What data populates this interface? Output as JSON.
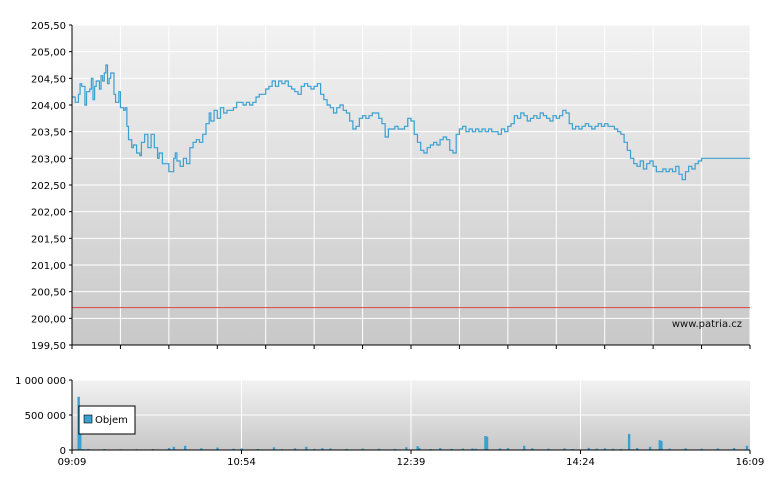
{
  "watermark": "www.patria.cz",
  "colors": {
    "price_line": "#3aa0d0",
    "reference_line": "#e04040",
    "volume_bar": "#3aa0d0",
    "grid": "#ffffff",
    "plot_top": "#f2f2f2",
    "plot_bottom": "#c8c8c8",
    "axis": "#000000"
  },
  "chart_data": [
    {
      "type": "line",
      "ylim": [
        199.5,
        205.5
      ],
      "yticks": [
        "199,50",
        "200,00",
        "200,50",
        "201,00",
        "201,50",
        "202,00",
        "202,50",
        "203,00",
        "203,50",
        "204,00",
        "204,50",
        "205,00",
        "205,50"
      ],
      "ytick_values": [
        199.5,
        200,
        200.5,
        201,
        201.5,
        202,
        202.5,
        203,
        203.5,
        204,
        204.5,
        205,
        205.5
      ],
      "reference_value": 200.2,
      "xlim": [
        0,
        420
      ],
      "series": [
        {
          "points": [
            [
              0,
              204.15
            ],
            [
              2,
              204.05
            ],
            [
              4,
              204.2
            ],
            [
              5,
              204.4
            ],
            [
              6,
              204.35
            ],
            [
              8,
              204.0
            ],
            [
              9,
              204.25
            ],
            [
              11,
              204.3
            ],
            [
              12,
              204.5
            ],
            [
              13,
              204.1
            ],
            [
              14,
              204.35
            ],
            [
              15,
              204.45
            ],
            [
              17,
              204.3
            ],
            [
              18,
              204.55
            ],
            [
              19,
              204.45
            ],
            [
              20,
              204.6
            ],
            [
              21,
              204.75
            ],
            [
              22,
              204.4
            ],
            [
              23,
              204.5
            ],
            [
              24,
              204.6
            ],
            [
              26,
              204.2
            ],
            [
              27,
              204.05
            ],
            [
              29,
              204.25
            ],
            [
              30,
              203.95
            ],
            [
              32,
              203.9
            ],
            [
              33,
              203.95
            ],
            [
              34,
              203.6
            ],
            [
              35,
              203.35
            ],
            [
              37,
              203.2
            ],
            [
              38,
              203.25
            ],
            [
              40,
              203.1
            ],
            [
              42,
              203.05
            ],
            [
              43,
              203.3
            ],
            [
              45,
              203.45
            ],
            [
              47,
              203.2
            ],
            [
              49,
              203.45
            ],
            [
              51,
              203.2
            ],
            [
              53,
              203.0
            ],
            [
              54,
              203.1
            ],
            [
              56,
              202.9
            ],
            [
              58,
              202.9
            ],
            [
              60,
              202.75
            ],
            [
              62,
              202.75
            ],
            [
              63,
              203.0
            ],
            [
              64,
              203.1
            ],
            [
              65,
              202.95
            ],
            [
              67,
              202.85
            ],
            [
              69,
              203.0
            ],
            [
              71,
              202.9
            ],
            [
              73,
              203.2
            ],
            [
              75,
              203.3
            ],
            [
              77,
              203.35
            ],
            [
              79,
              203.3
            ],
            [
              81,
              203.45
            ],
            [
              83,
              203.65
            ],
            [
              85,
              203.85
            ],
            [
              86,
              203.7
            ],
            [
              88,
              203.9
            ],
            [
              90,
              203.75
            ],
            [
              92,
              203.95
            ],
            [
              94,
              203.85
            ],
            [
              96,
              203.9
            ],
            [
              98,
              203.9
            ],
            [
              100,
              203.95
            ],
            [
              102,
              204.05
            ],
            [
              104,
              204.05
            ],
            [
              106,
              204.0
            ],
            [
              108,
              204.05
            ],
            [
              110,
              204.0
            ],
            [
              112,
              204.05
            ],
            [
              114,
              204.15
            ],
            [
              116,
              204.2
            ],
            [
              118,
              204.2
            ],
            [
              120,
              204.3
            ],
            [
              122,
              204.35
            ],
            [
              124,
              204.45
            ],
            [
              126,
              204.35
            ],
            [
              128,
              204.45
            ],
            [
              130,
              204.4
            ],
            [
              132,
              204.45
            ],
            [
              134,
              204.35
            ],
            [
              136,
              204.3
            ],
            [
              138,
              204.25
            ],
            [
              140,
              204.2
            ],
            [
              142,
              204.35
            ],
            [
              144,
              204.4
            ],
            [
              146,
              204.35
            ],
            [
              148,
              204.3
            ],
            [
              150,
              204.35
            ],
            [
              152,
              204.4
            ],
            [
              154,
              204.2
            ],
            [
              156,
              204.1
            ],
            [
              158,
              204.0
            ],
            [
              160,
              203.95
            ],
            [
              162,
              203.85
            ],
            [
              164,
              203.95
            ],
            [
              166,
              204.0
            ],
            [
              168,
              203.9
            ],
            [
              170,
              203.85
            ],
            [
              172,
              203.7
            ],
            [
              174,
              203.55
            ],
            [
              176,
              203.6
            ],
            [
              178,
              203.75
            ],
            [
              180,
              203.8
            ],
            [
              182,
              203.75
            ],
            [
              184,
              203.8
            ],
            [
              186,
              203.85
            ],
            [
              188,
              203.85
            ],
            [
              190,
              203.75
            ],
            [
              192,
              203.65
            ],
            [
              194,
              203.4
            ],
            [
              196,
              203.55
            ],
            [
              198,
              203.55
            ],
            [
              200,
              203.6
            ],
            [
              202,
              203.55
            ],
            [
              204,
              203.55
            ],
            [
              206,
              203.6
            ],
            [
              208,
              203.75
            ],
            [
              210,
              203.7
            ],
            [
              212,
              203.45
            ],
            [
              214,
              203.3
            ],
            [
              216,
              203.15
            ],
            [
              218,
              203.1
            ],
            [
              220,
              203.2
            ],
            [
              222,
              203.25
            ],
            [
              224,
              203.3
            ],
            [
              226,
              203.25
            ],
            [
              228,
              203.35
            ],
            [
              230,
              203.4
            ],
            [
              232,
              203.35
            ],
            [
              234,
              203.15
            ],
            [
              236,
              203.1
            ],
            [
              238,
              203.45
            ],
            [
              240,
              203.55
            ],
            [
              242,
              203.6
            ],
            [
              244,
              203.5
            ],
            [
              246,
              203.55
            ],
            [
              248,
              203.5
            ],
            [
              250,
              203.55
            ],
            [
              252,
              203.5
            ],
            [
              254,
              203.55
            ],
            [
              256,
              203.5
            ],
            [
              258,
              203.55
            ],
            [
              260,
              203.5
            ],
            [
              262,
              203.5
            ],
            [
              264,
              203.45
            ],
            [
              266,
              203.55
            ],
            [
              268,
              203.5
            ],
            [
              270,
              203.6
            ],
            [
              272,
              203.65
            ],
            [
              274,
              203.8
            ],
            [
              276,
              203.75
            ],
            [
              278,
              203.85
            ],
            [
              280,
              203.8
            ],
            [
              282,
              203.7
            ],
            [
              284,
              203.75
            ],
            [
              286,
              203.8
            ],
            [
              288,
              203.75
            ],
            [
              290,
              203.85
            ],
            [
              292,
              203.8
            ],
            [
              294,
              203.75
            ],
            [
              296,
              203.7
            ],
            [
              298,
              203.8
            ],
            [
              300,
              203.75
            ],
            [
              302,
              203.8
            ],
            [
              304,
              203.9
            ],
            [
              306,
              203.85
            ],
            [
              308,
              203.65
            ],
            [
              310,
              203.55
            ],
            [
              312,
              203.6
            ],
            [
              314,
              203.55
            ],
            [
              316,
              203.6
            ],
            [
              318,
              203.65
            ],
            [
              320,
              203.6
            ],
            [
              322,
              203.55
            ],
            [
              324,
              203.6
            ],
            [
              326,
              203.65
            ],
            [
              328,
              203.6
            ],
            [
              330,
              203.65
            ],
            [
              332,
              203.6
            ],
            [
              334,
              203.6
            ],
            [
              336,
              203.55
            ],
            [
              338,
              203.5
            ],
            [
              340,
              203.45
            ],
            [
              342,
              203.3
            ],
            [
              344,
              203.15
            ],
            [
              346,
              203.0
            ],
            [
              348,
              202.9
            ],
            [
              350,
              202.85
            ],
            [
              352,
              202.95
            ],
            [
              354,
              202.8
            ],
            [
              356,
              202.9
            ],
            [
              358,
              202.95
            ],
            [
              360,
              202.85
            ],
            [
              362,
              202.75
            ],
            [
              364,
              202.75
            ],
            [
              366,
              202.8
            ],
            [
              368,
              202.75
            ],
            [
              370,
              202.8
            ],
            [
              372,
              202.75
            ],
            [
              374,
              202.85
            ],
            [
              376,
              202.7
            ],
            [
              378,
              202.6
            ],
            [
              380,
              202.75
            ],
            [
              382,
              202.85
            ],
            [
              384,
              202.8
            ],
            [
              386,
              202.9
            ],
            [
              388,
              202.95
            ],
            [
              390,
              203.0
            ],
            [
              420,
              203.0
            ]
          ]
        }
      ],
      "xlabel": "",
      "ylabel": ""
    },
    {
      "type": "bar",
      "ylim": [
        0,
        1000000
      ],
      "yticks": [
        "0",
        "500 000",
        "1 000 000"
      ],
      "ytick_values": [
        0,
        500000,
        1000000
      ],
      "xlim": [
        0,
        420
      ],
      "xticks": [
        "09:09",
        "10:54",
        "12:39",
        "14:24",
        "16:09"
      ],
      "xtick_values": [
        0,
        105,
        210,
        315,
        420
      ],
      "legend": {
        "label": "Objem",
        "position": "top-left"
      },
      "bars": [
        [
          4,
          760000
        ],
        [
          5,
          420000
        ],
        [
          7,
          12000
        ],
        [
          10,
          15000
        ],
        [
          20,
          14000
        ],
        [
          30,
          11000
        ],
        [
          40,
          12000
        ],
        [
          50,
          14000
        ],
        [
          60,
          28000
        ],
        [
          63,
          45000
        ],
        [
          70,
          60000
        ],
        [
          80,
          25000
        ],
        [
          90,
          35000
        ],
        [
          100,
          18000
        ],
        [
          105,
          22000
        ],
        [
          115,
          14000
        ],
        [
          125,
          38000
        ],
        [
          130,
          12000
        ],
        [
          138,
          24000
        ],
        [
          145,
          45000
        ],
        [
          150,
          16000
        ],
        [
          155,
          26000
        ],
        [
          160,
          22000
        ],
        [
          170,
          14000
        ],
        [
          180,
          20000
        ],
        [
          190,
          18000
        ],
        [
          200,
          16000
        ],
        [
          207,
          40000
        ],
        [
          214,
          55000
        ],
        [
          215,
          30000
        ],
        [
          222,
          14000
        ],
        [
          228,
          28000
        ],
        [
          235,
          16000
        ],
        [
          242,
          20000
        ],
        [
          248,
          22000
        ],
        [
          250,
          18000
        ],
        [
          256,
          200000
        ],
        [
          257,
          190000
        ],
        [
          265,
          22000
        ],
        [
          270,
          26000
        ],
        [
          280,
          60000
        ],
        [
          285,
          24000
        ],
        [
          295,
          18000
        ],
        [
          305,
          24000
        ],
        [
          310,
          14000
        ],
        [
          320,
          30000
        ],
        [
          325,
          20000
        ],
        [
          330,
          24000
        ],
        [
          335,
          18000
        ],
        [
          340,
          16000
        ],
        [
          345,
          230000
        ],
        [
          350,
          28000
        ],
        [
          358,
          45000
        ],
        [
          364,
          140000
        ],
        [
          365,
          130000
        ],
        [
          370,
          20000
        ],
        [
          380,
          24000
        ],
        [
          390,
          18000
        ],
        [
          400,
          22000
        ],
        [
          410,
          28000
        ],
        [
          418,
          60000
        ]
      ],
      "xlabel": "",
      "ylabel": ""
    }
  ]
}
